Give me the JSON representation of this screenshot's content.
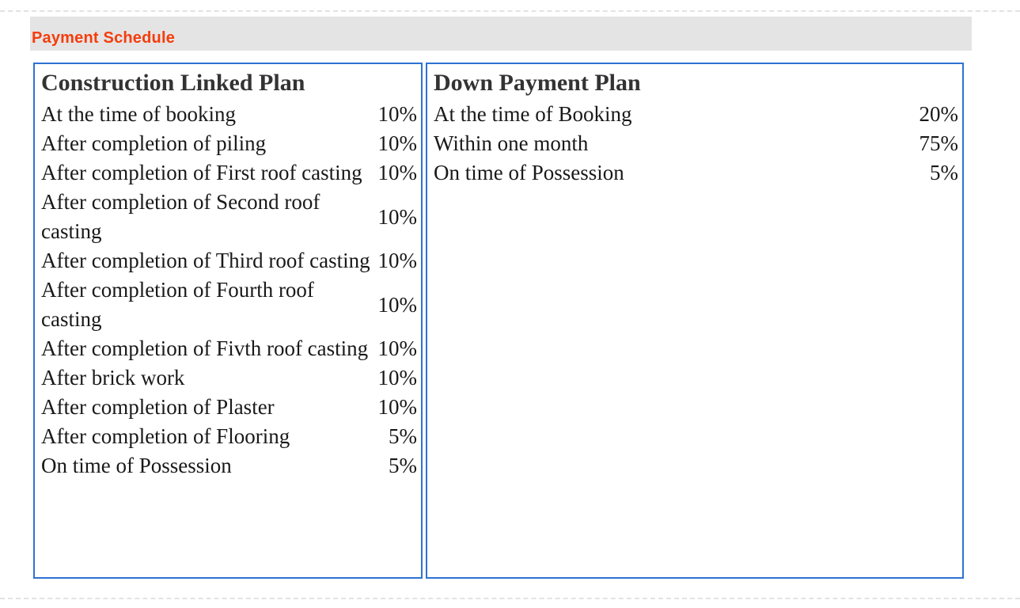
{
  "section": {
    "title": "Payment Schedule"
  },
  "plans": [
    {
      "title": "Construction Linked Plan",
      "rows": [
        {
          "label": "At the time of booking",
          "value": "10%"
        },
        {
          "label": "After completion of piling",
          "value": "10%"
        },
        {
          "label": "After completion of First roof casting",
          "value": "10%"
        },
        {
          "label": "After completion of Second roof casting",
          "value": "10%"
        },
        {
          "label": "After completion of Third roof casting",
          "value": "10%"
        },
        {
          "label": "After completion of Fourth roof casting",
          "value": "10%"
        },
        {
          "label": "After completion of Fivth roof casting",
          "value": "10%"
        },
        {
          "label": "After brick work",
          "value": "10%"
        },
        {
          "label": "After completion of Plaster",
          "value": "10%"
        },
        {
          "label": "After completion of Flooring",
          "value": "5%"
        },
        {
          "label": "On time of Possession",
          "value": "5%"
        }
      ]
    },
    {
      "title": "Down Payment Plan",
      "rows": [
        {
          "label": "At the time of Booking",
          "value": "20%"
        },
        {
          "label": "Within one month",
          "value": "75%"
        },
        {
          "label": "On time of Possession",
          "value": "5%"
        }
      ]
    }
  ],
  "colors": {
    "accent_border": "#2d73d2",
    "section_title_color": "#f53d0c",
    "section_bar_bg": "#e4e4e4",
    "body_text": "#191919"
  }
}
